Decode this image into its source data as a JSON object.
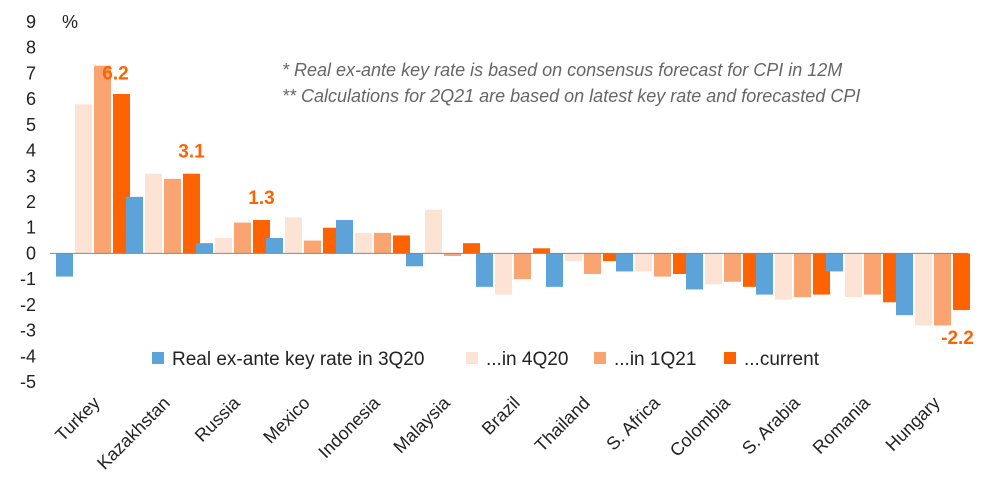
{
  "chart_data": {
    "type": "bar",
    "ylabel": "%",
    "ylim": [
      -5,
      9
    ],
    "yticks": [
      9,
      8,
      7,
      6,
      5,
      4,
      3,
      2,
      1,
      0,
      -1,
      -2,
      -3,
      -4,
      -5
    ],
    "grid": false,
    "legend_position": "bottom",
    "categories": [
      "Turkey",
      "Kazakhstan",
      "Russia",
      "Mexico",
      "Indonesia",
      "Malaysia",
      "Brazil",
      "Thailand",
      "S. Africa",
      "Colombia",
      "S. Arabia",
      "Romania",
      "Hungary"
    ],
    "series": [
      {
        "name": "Real ex-ante key rate in 3Q20",
        "color": "#5BA3D9",
        "values": [
          -0.9,
          2.2,
          0.4,
          0.6,
          1.3,
          -0.5,
          -1.3,
          -1.3,
          -0.7,
          -1.4,
          -1.6,
          -0.7,
          -2.4
        ]
      },
      {
        "name": "...in 4Q20",
        "color": "#FDE3D4",
        "values": [
          5.8,
          3.1,
          0.6,
          1.4,
          0.8,
          1.7,
          -1.6,
          -0.3,
          -0.7,
          -1.2,
          -1.8,
          -1.7,
          -2.8
        ]
      },
      {
        "name": "...in 1Q21",
        "color": "#F9A471",
        "values": [
          7.3,
          2.9,
          1.2,
          0.5,
          0.8,
          -0.1,
          -1.0,
          -0.8,
          -0.9,
          -1.1,
          -1.7,
          -1.6,
          -2.8
        ]
      },
      {
        "name": "...current",
        "color": "#FF6200",
        "values": [
          6.2,
          3.1,
          1.3,
          1.0,
          0.7,
          0.4,
          0.2,
          -0.3,
          -0.8,
          -1.3,
          -1.6,
          -1.9,
          -2.2
        ]
      }
    ],
    "data_labels": [
      {
        "category": "Turkey",
        "text": "6.2"
      },
      {
        "category": "Kazakhstan",
        "text": "3.1"
      },
      {
        "category": "Russia",
        "text": "1.3"
      },
      {
        "category": "Hungary",
        "text": "-2.2"
      }
    ],
    "annotations": [
      "* Real ex-ante key rate is based on consensus forecast for CPI in 12M",
      "** Calculations for 2Q21 are based on latest key rate and forecasted CPI"
    ]
  }
}
